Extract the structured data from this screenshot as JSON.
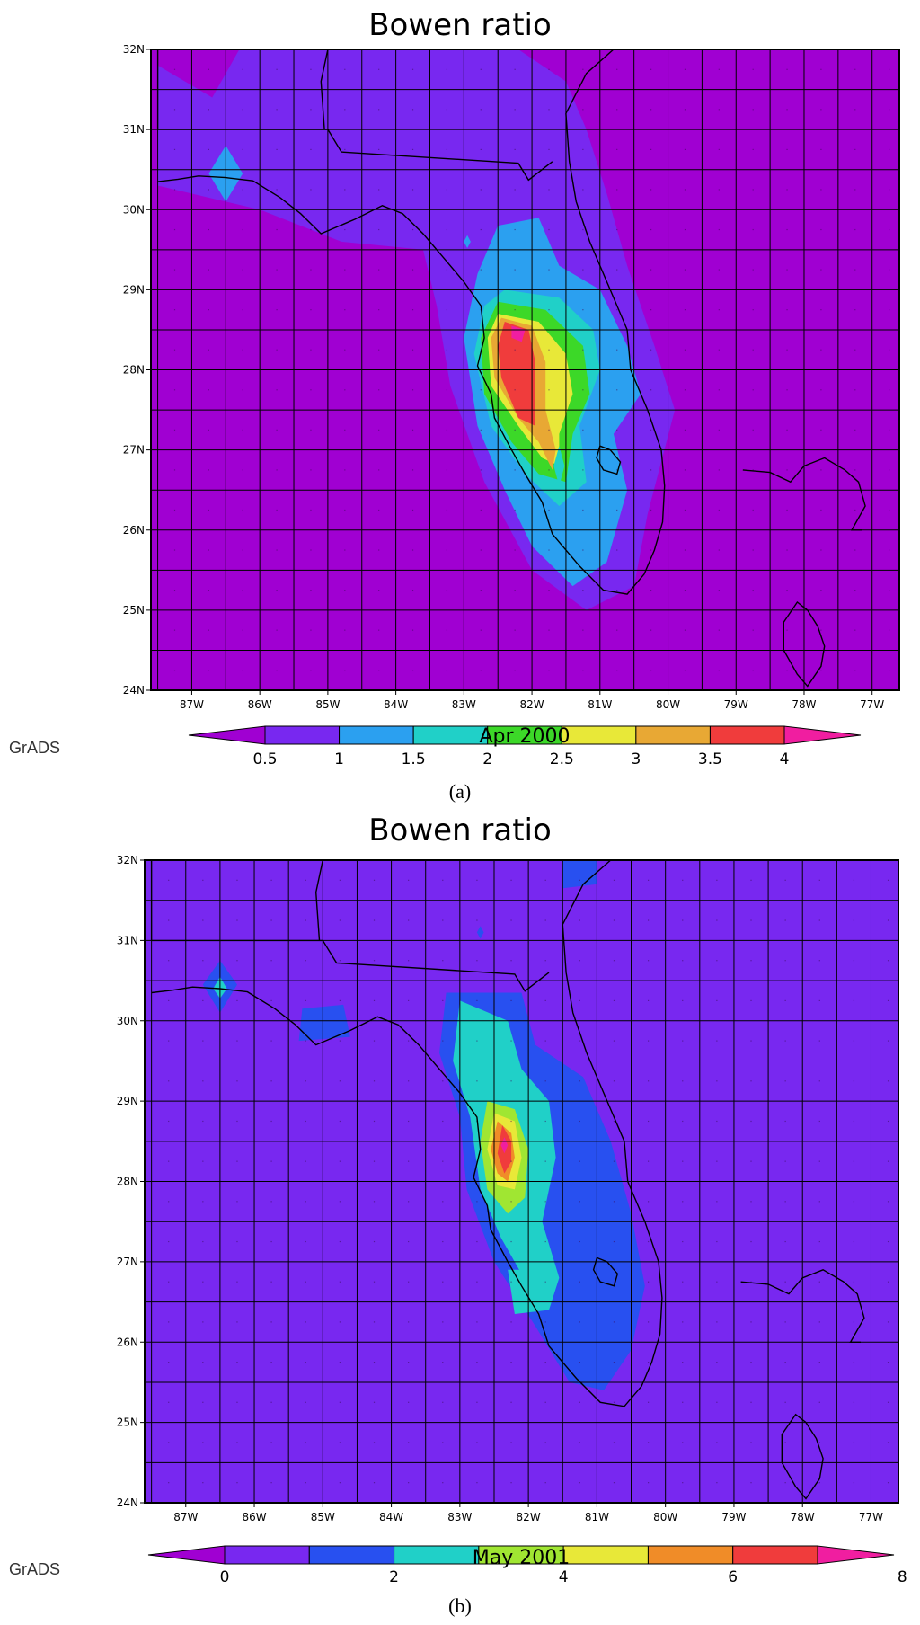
{
  "panels": [
    {
      "id": "a",
      "title": "Bowen ratio",
      "date": "Apr 2000",
      "caption": "(a)",
      "watermark": "GrADS",
      "lat_labels": [
        "24N",
        "25N",
        "26N",
        "27N",
        "28N",
        "29N",
        "30N",
        "31N",
        "32N"
      ],
      "lon_labels": [
        "87W",
        "86W",
        "85W",
        "84W",
        "83W",
        "82W",
        "81W",
        "80W",
        "79W",
        "78W",
        "77W"
      ],
      "colorbar": {
        "labels": [
          "0.5",
          "1",
          "1.5",
          "2",
          "2.5",
          "3",
          "3.5",
          "4"
        ],
        "colors": [
          "#a000d2",
          "#7828f0",
          "#2ba0f0",
          "#20d0c8",
          "#3cd828",
          "#e8e838",
          "#e8a834",
          "#f03c3c",
          "#f01ea0"
        ]
      },
      "field": {
        "background": "#a000d2",
        "contours": [
          {
            "level": "0.5",
            "color": "#7828f0"
          },
          {
            "level": "1",
            "color": "#2ba0f0"
          },
          {
            "level": "1.5",
            "color": "#20d0c8"
          },
          {
            "level": "2",
            "color": "#3cd828"
          },
          {
            "level": "2.5",
            "color": "#e8e838"
          },
          {
            "level": "3",
            "color": "#e8a834"
          },
          {
            "level": "3.5",
            "color": "#f03c3c"
          },
          {
            "level": "4",
            "color": "#f01ea0"
          }
        ]
      }
    },
    {
      "id": "b",
      "title": "Bowen ratio",
      "date": "May 2001",
      "caption": "(b)",
      "watermark": "GrADS",
      "lat_labels": [
        "24N",
        "25N",
        "26N",
        "27N",
        "28N",
        "29N",
        "30N",
        "31N",
        "32N"
      ],
      "lon_labels": [
        "87W",
        "86W",
        "85W",
        "84W",
        "83W",
        "82W",
        "81W",
        "80W",
        "79W",
        "78W",
        "77W"
      ],
      "colorbar": {
        "labels": [
          "0",
          "2",
          "4",
          "6",
          "8"
        ],
        "colors": [
          "#a000d2",
          "#7828f0",
          "#2850f0",
          "#20d0c8",
          "#a0e632",
          "#e8e838",
          "#f08c28",
          "#f03c3c",
          "#f01ea0"
        ]
      },
      "field": {
        "background": "#7828f0",
        "contours": [
          {
            "level": "1",
            "color": "#2850f0"
          },
          {
            "level": "2",
            "color": "#20d0c8"
          },
          {
            "level": "3",
            "color": "#a0e632"
          },
          {
            "level": "4",
            "color": "#e8e838"
          },
          {
            "level": "5",
            "color": "#f08c28"
          },
          {
            "level": "6",
            "color": "#f03c3c"
          },
          {
            "level": "7",
            "color": "#f01ea0"
          }
        ]
      }
    }
  ]
}
